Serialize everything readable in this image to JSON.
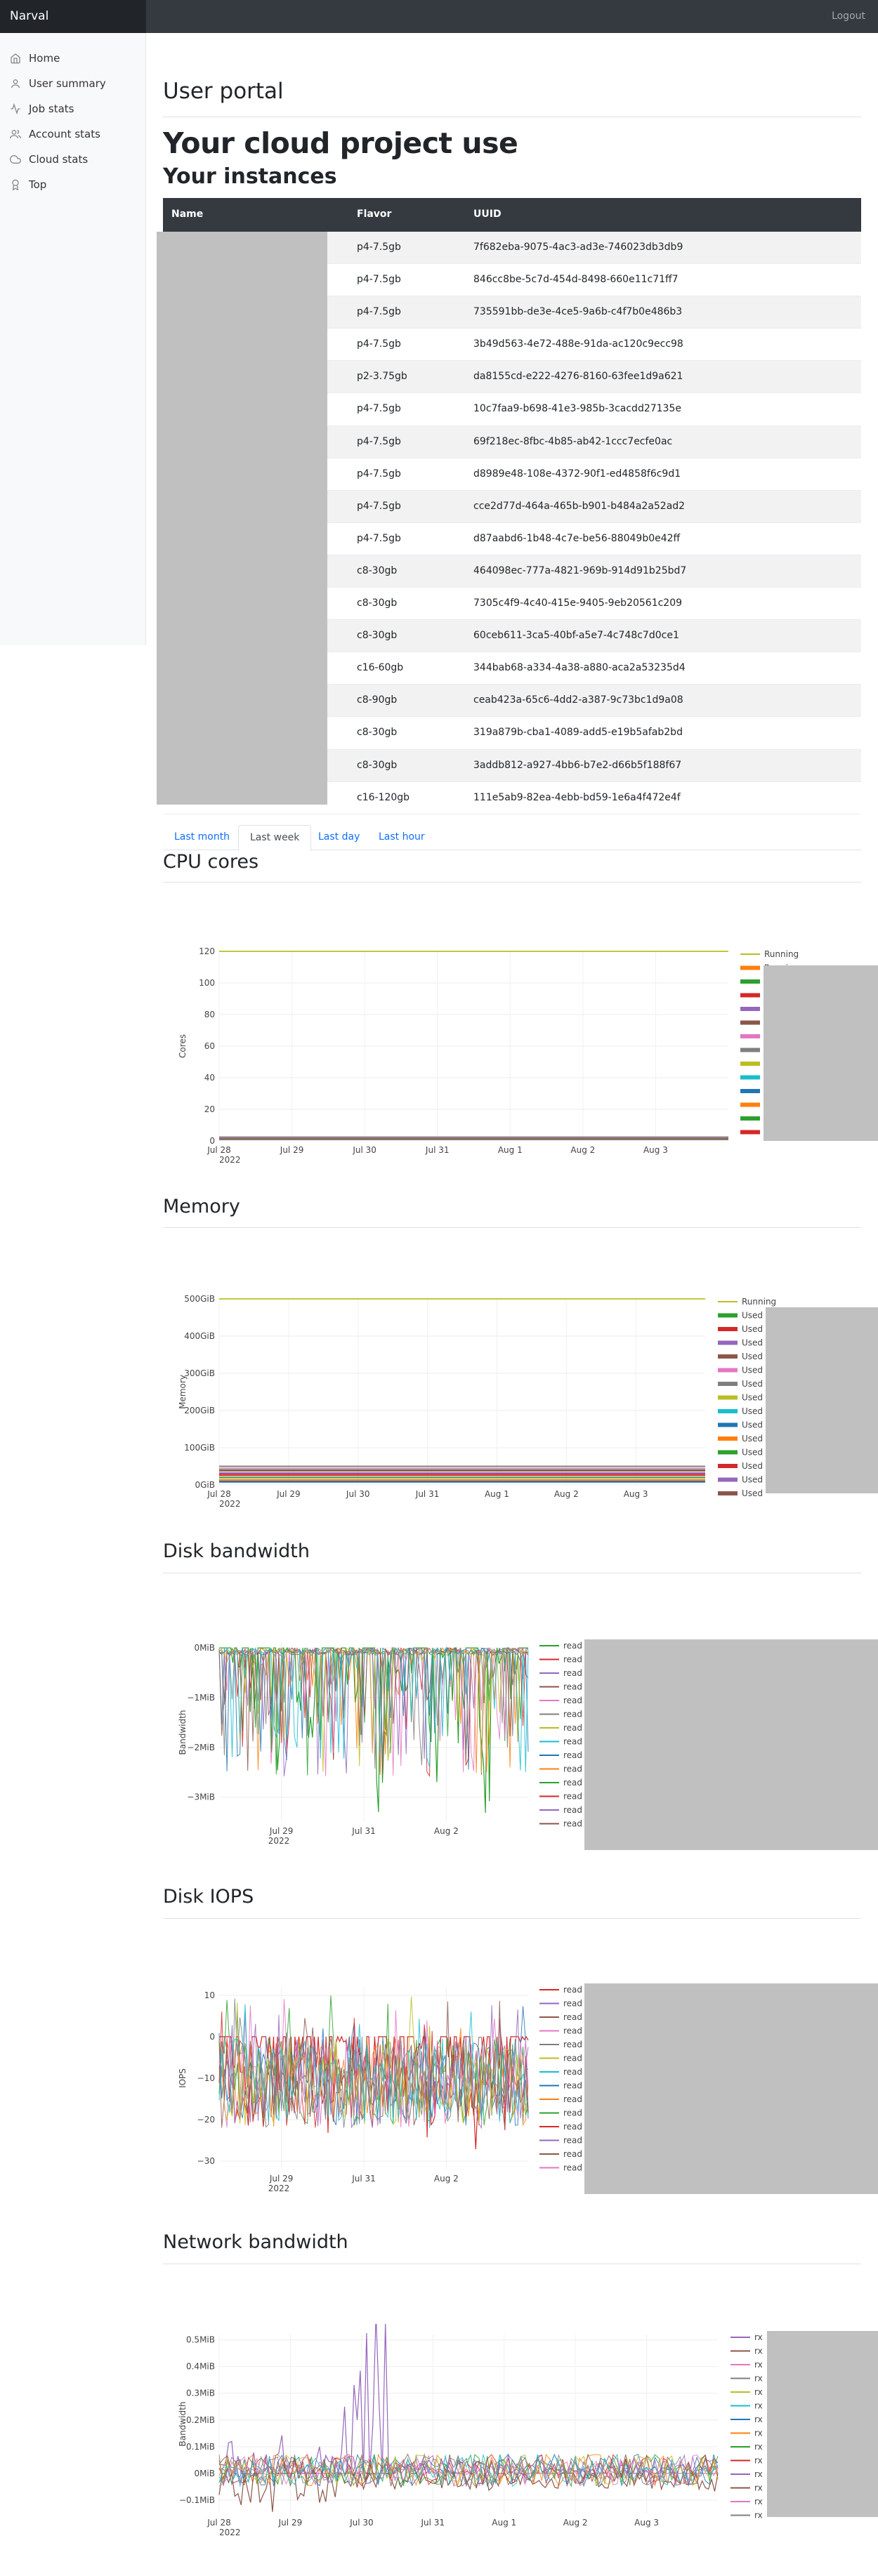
{
  "brand": "Narval",
  "logout_label": "Logout",
  "sidebar": {
    "items": [
      {
        "label": "Home",
        "icon": "home-icon"
      },
      {
        "label": "User summary",
        "icon": "user-icon"
      },
      {
        "label": "Job stats",
        "icon": "activity-icon"
      },
      {
        "label": "Account stats",
        "icon": "users-icon"
      },
      {
        "label": "Cloud stats",
        "icon": "cloud-icon"
      },
      {
        "label": "Top",
        "icon": "award-icon"
      }
    ]
  },
  "page_title": "User portal",
  "project_title": "Your cloud project use",
  "instances_title": "Your instances",
  "table": {
    "headers": [
      "Name",
      "Flavor",
      "UUID"
    ],
    "rows": [
      {
        "flavor": "p4-7.5gb",
        "uuid": "7f682eba-9075-4ac3-ad3e-746023db3db9"
      },
      {
        "flavor": "p4-7.5gb",
        "uuid": "846cc8be-5c7d-454d-8498-660e11c71ff7"
      },
      {
        "flavor": "p4-7.5gb",
        "uuid": "735591bb-de3e-4ce5-9a6b-c4f7b0e486b3"
      },
      {
        "flavor": "p4-7.5gb",
        "uuid": "3b49d563-4e72-488e-91da-ac120c9ecc98"
      },
      {
        "flavor": "p2-3.75gb",
        "uuid": "da8155cd-e222-4276-8160-63fee1d9a621"
      },
      {
        "flavor": "p4-7.5gb",
        "uuid": "10c7faa9-b698-41e3-985b-3cacdd27135e"
      },
      {
        "flavor": "p4-7.5gb",
        "uuid": "69f218ec-8fbc-4b85-ab42-1ccc7ecfe0ac"
      },
      {
        "flavor": "p4-7.5gb",
        "uuid": "d8989e48-108e-4372-90f1-ed4858f6c9d1"
      },
      {
        "flavor": "p4-7.5gb",
        "uuid": "cce2d77d-464a-465b-b901-b484a2a52ad2"
      },
      {
        "flavor": "p4-7.5gb",
        "uuid": "d87aabd6-1b48-4c7e-be56-88049b0e42ff"
      },
      {
        "flavor": "c8-30gb",
        "uuid": "464098ec-777a-4821-969b-914d91b25bd7"
      },
      {
        "flavor": "c8-30gb",
        "uuid": "7305c4f9-4c40-415e-9405-9eb20561c209"
      },
      {
        "flavor": "c8-30gb",
        "uuid": "60ceb611-3ca5-40bf-a5e7-4c748c7d0ce1"
      },
      {
        "flavor": "c16-60gb",
        "uuid": "344bab68-a334-4a38-a880-aca2a53235d4"
      },
      {
        "flavor": "c8-90gb",
        "uuid": "ceab423a-65c6-4dd2-a387-9c73bc1d9a08"
      },
      {
        "flavor": "c8-30gb",
        "uuid": "319a879b-cba1-4089-add5-e19b5afab2bd"
      },
      {
        "flavor": "c8-30gb",
        "uuid": "3addb812-a927-4bb6-b7e2-d66b5f188f67"
      },
      {
        "flavor": "c16-120gb",
        "uuid": "111e5ab9-82ea-4ebb-bd59-1e6a4f472e4f"
      }
    ]
  },
  "tabs": [
    "Last month",
    "Last week",
    "Last day",
    "Last hour"
  ],
  "active_tab": "Last week",
  "sections": {
    "cpu": "CPU cores",
    "memory": "Memory",
    "disk_bw": "Disk bandwidth",
    "disk_iops": "Disk IOPS",
    "net_bw": "Network bandwidth"
  },
  "palette": [
    "#1f77b4",
    "#ff7f0e",
    "#2ca02c",
    "#d62728",
    "#9467bd",
    "#8c564b",
    "#e377c2",
    "#7f7f7f",
    "#bcbd22",
    "#17becf"
  ],
  "chart_data": [
    {
      "type": "line",
      "ylabel": "Cores",
      "x_ticks": [
        "Jul 28",
        "Jul 29",
        "Jul 30",
        "Jul 31",
        "Aug 1",
        "Aug 2",
        "Aug 3"
      ],
      "x_year": "2022",
      "y_ticks": [
        "0",
        "20",
        "40",
        "60",
        "80",
        "100",
        "120"
      ],
      "ylim": [
        0,
        120
      ],
      "legend": [
        "Running"
      ],
      "series": [
        {
          "name": "Running",
          "values": [
            120,
            120,
            120,
            120,
            120,
            120,
            120,
            120
          ]
        },
        {
          "values": [
            2,
            2,
            2,
            2,
            2,
            2,
            2,
            2
          ]
        },
        {
          "values": [
            1,
            1,
            1,
            1,
            1,
            1,
            1,
            1
          ]
        }
      ]
    },
    {
      "type": "line",
      "ylabel": "Memory",
      "x_ticks": [
        "Jul 28",
        "Jul 29",
        "Jul 30",
        "Jul 31",
        "Aug 1",
        "Aug 2",
        "Aug 3"
      ],
      "x_year": "2022",
      "y_ticks": [
        "0GiB",
        "100GiB",
        "200GiB",
        "300GiB",
        "400GiB",
        "500GiB"
      ],
      "ylim": [
        0,
        500
      ],
      "legend": [
        "Running",
        "Used",
        "Used",
        "Used",
        "Used",
        "Used",
        "Used",
        "Used",
        "Used",
        "Used",
        "Used",
        "Used",
        "Used",
        "Used",
        "Used"
      ],
      "series": [
        {
          "name": "Running",
          "values": [
            500,
            500,
            500,
            500,
            500,
            500,
            500,
            500
          ]
        },
        {
          "name": "Used",
          "values": [
            40,
            40,
            40,
            40,
            40,
            40,
            40,
            40
          ]
        },
        {
          "name": "Used",
          "values": [
            30,
            30,
            30,
            30,
            30,
            30,
            30,
            30
          ]
        },
        {
          "name": "Used",
          "values": [
            20,
            20,
            20,
            20,
            20,
            20,
            20,
            20
          ]
        },
        {
          "name": "Used",
          "values": [
            10,
            10,
            10,
            10,
            10,
            10,
            10,
            10
          ]
        }
      ]
    },
    {
      "type": "line",
      "ylabel": "Bandwidth",
      "x_ticks": [
        "Jul 29",
        "Jul 31",
        "Aug 2"
      ],
      "x_year": "2022",
      "y_ticks": [
        "0MiB",
        "−1MiB",
        "−2MiB",
        "−3MiB"
      ],
      "ylim": [
        -3.5,
        0.1
      ],
      "legend": [
        "read",
        "read",
        "read",
        "read",
        "read",
        "read",
        "read",
        "read",
        "read",
        "read",
        "read",
        "read",
        "read",
        "read"
      ],
      "series": [
        {
          "name": "read",
          "values": [
            0,
            -0.4,
            -1.2,
            0,
            -2.2,
            -0.1,
            -1.6,
            -2.5,
            0,
            -0.8,
            -1.9,
            0,
            -3.3,
            -0.5,
            -1.1,
            0,
            -2.4,
            -0.3,
            -1.7,
            0,
            -2.9,
            -0.6,
            -1.3,
            0
          ]
        }
      ]
    },
    {
      "type": "line",
      "ylabel": "IOPS",
      "x_ticks": [
        "Jul 29",
        "Jul 31",
        "Aug 2"
      ],
      "x_year": "2022",
      "y_ticks": [
        "10",
        "0",
        "−10",
        "−20",
        "−30"
      ],
      "ylim": [
        -32,
        12
      ],
      "legend": [
        "read",
        "read",
        "read",
        "read",
        "read",
        "read",
        "read",
        "read",
        "read",
        "read",
        "read",
        "read",
        "read",
        "read"
      ],
      "series": [
        {
          "name": "read",
          "values": [
            0,
            -10,
            -25,
            -5,
            -18,
            -28,
            -8,
            -15,
            -22,
            -3,
            -12,
            -26,
            -7,
            -19,
            -14,
            -4,
            -21,
            -9,
            -16,
            -24,
            -6,
            -11,
            -20,
            -2
          ]
        }
      ]
    },
    {
      "type": "line",
      "ylabel": "Bandwidth",
      "x_ticks": [
        "Jul 28",
        "Jul 29",
        "Jul 30",
        "Jul 31",
        "Aug 1",
        "Aug 2",
        "Aug 3"
      ],
      "x_year": "2022",
      "y_ticks": [
        "−0.1MiB",
        "0MiB",
        "0.1MiB",
        "0.2MiB",
        "0.3MiB",
        "0.4MiB",
        "0.5MiB"
      ],
      "ylim": [
        -0.15,
        0.52
      ],
      "legend": [
        "rx",
        "rx",
        "rx",
        "rx",
        "rx",
        "rx",
        "rx",
        "rx",
        "rx",
        "rx",
        "rx",
        "rx",
        "rx",
        "rx"
      ],
      "series": [
        {
          "name": "rx",
          "values": [
            0.1,
            0.12,
            0.09,
            0.5,
            0.03,
            0.02,
            0.04,
            0.03,
            0.02,
            0.03,
            0.02,
            0.03
          ]
        },
        {
          "name": "rx",
          "values": [
            -0.1,
            -0.12,
            -0.11,
            -0.05,
            -0.05,
            -0.05,
            -0.06,
            -0.05,
            -0.05,
            -0.05,
            -0.05,
            -0.06
          ]
        },
        {
          "name": "rx",
          "values": [
            0.02,
            0.03,
            0.01,
            0.0,
            0.04,
            0.01,
            0.03,
            0.0,
            0.02,
            0.05,
            0.01,
            0.0
          ]
        }
      ]
    }
  ]
}
